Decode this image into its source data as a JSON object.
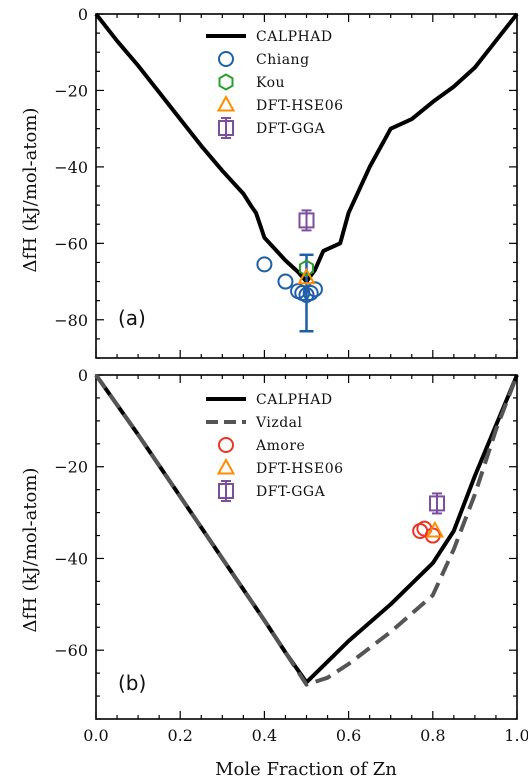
{
  "xlabel": "Mole Fraction of Zn",
  "chart_data": [
    {
      "type": "line",
      "panel_label": "(a)",
      "ylabel": "ΔfH (kJ/mol-atom)",
      "xlabel": "",
      "xlim": [
        0,
        1
      ],
      "ylim": [
        -90,
        0
      ],
      "x_ticks": [
        0.0,
        0.2,
        0.4,
        0.6,
        0.8,
        1.0
      ],
      "y_ticks": [
        0,
        -20,
        -40,
        -60,
        -80
      ],
      "y_tick_labels": [
        "0",
        "−20",
        "−40",
        "−60",
        "−80"
      ],
      "legend_position": "top-center",
      "grid": false,
      "series": [
        {
          "name": "CALPHAD",
          "kind": "line",
          "color": "#000000",
          "dash": "solid",
          "x": [
            0.0,
            0.05,
            0.1,
            0.15,
            0.2,
            0.25,
            0.3,
            0.35,
            0.37,
            0.38,
            0.4,
            0.45,
            0.48,
            0.5,
            0.52,
            0.54,
            0.58,
            0.6,
            0.65,
            0.7,
            0.75,
            0.8,
            0.85,
            0.9,
            0.95,
            1.0
          ],
          "y": [
            0,
            -7,
            -13.5,
            -20.5,
            -27.5,
            -34.5,
            -41,
            -47,
            -50.5,
            -52,
            -58.5,
            -64.5,
            -67.5,
            -70,
            -67,
            -62,
            -60,
            -52,
            -40,
            -30,
            -27.5,
            -23,
            -19,
            -14,
            -7,
            0
          ]
        },
        {
          "name": "Chiang",
          "kind": "marker",
          "marker": "circle",
          "color": "#1f5fa8",
          "x": [
            0.4,
            0.45,
            0.48,
            0.49,
            0.5,
            0.51,
            0.52
          ],
          "y": [
            -65.5,
            -70,
            -72.5,
            -73,
            -73.5,
            -73,
            -72
          ],
          "errorbar": {
            "x": 0.5,
            "y": -73,
            "low": -83,
            "high": -63
          }
        },
        {
          "name": "Kou",
          "kind": "marker",
          "marker": "hexagon",
          "color": "#2ca02c",
          "x": [
            0.5
          ],
          "y": [
            -66.5
          ]
        },
        {
          "name": "DFT-HSE06",
          "kind": "marker",
          "marker": "triangle",
          "color": "#ff8c00",
          "x": [
            0.5
          ],
          "y": [
            -69
          ]
        },
        {
          "name": "DFT-GGA",
          "kind": "marker",
          "marker": "square-errorbar",
          "color": "#7b4f9e",
          "x": [
            0.5
          ],
          "y": [
            -54
          ]
        }
      ]
    },
    {
      "type": "line",
      "panel_label": "(b)",
      "ylabel": "ΔfH (kJ/mol-atom)",
      "xlabel": "Mole Fraction of Zn",
      "xlim": [
        0,
        1
      ],
      "ylim": [
        -75,
        0
      ],
      "x_ticks": [
        0.0,
        0.2,
        0.4,
        0.6,
        0.8,
        1.0
      ],
      "x_tick_labels": [
        "0.0",
        "0.2",
        "0.4",
        "0.6",
        "0.8",
        "1.0"
      ],
      "y_ticks": [
        0,
        -20,
        -40,
        -60
      ],
      "y_tick_labels": [
        "0",
        "−20",
        "−40",
        "−60"
      ],
      "legend_position": "top-center",
      "grid": false,
      "series": [
        {
          "name": "CALPHAD",
          "kind": "line",
          "color": "#000000",
          "dash": "solid",
          "x": [
            0.0,
            0.1,
            0.2,
            0.3,
            0.4,
            0.45,
            0.5,
            0.6,
            0.7,
            0.8,
            0.85,
            0.9,
            0.95,
            1.0
          ],
          "y": [
            0,
            -13,
            -26.5,
            -40,
            -53.5,
            -60.5,
            -67,
            -58,
            -50,
            -41,
            -34,
            -22,
            -11,
            0
          ]
        },
        {
          "name": "Vizdal",
          "kind": "line",
          "color": "#555555",
          "dash": "dashed",
          "x": [
            0.0,
            0.1,
            0.2,
            0.3,
            0.4,
            0.45,
            0.5,
            0.55,
            0.6,
            0.7,
            0.8,
            0.85,
            0.9,
            0.95,
            1.0
          ],
          "y": [
            0,
            -13,
            -26.5,
            -40,
            -53.5,
            -60.5,
            -67.5,
            -66,
            -63,
            -56,
            -48,
            -38,
            -26,
            -12,
            0
          ]
        },
        {
          "name": "Amore",
          "kind": "marker",
          "marker": "circle",
          "color": "#ee3322",
          "x": [
            0.77,
            0.78,
            0.8
          ],
          "y": [
            -34,
            -33.5,
            -35
          ]
        },
        {
          "name": "DFT-HSE06",
          "kind": "marker",
          "marker": "triangle",
          "color": "#ff8c00",
          "x": [
            0.805
          ],
          "y": [
            -34
          ]
        },
        {
          "name": "DFT-GGA",
          "kind": "marker",
          "marker": "square-errorbar",
          "color": "#7b4f9e",
          "x": [
            0.81
          ],
          "y": [
            -28
          ]
        }
      ]
    }
  ]
}
